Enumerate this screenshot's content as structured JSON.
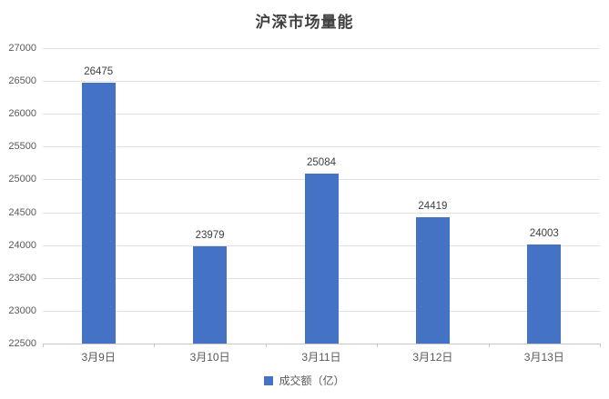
{
  "chart_data": {
    "type": "bar",
    "title": "沪深市场量能",
    "categories": [
      "3月9日",
      "3月10日",
      "3月11日",
      "3月12日",
      "3月13日"
    ],
    "series": [
      {
        "name": "成交额（亿）",
        "values": [
          26475,
          23979,
          25084,
          24419,
          24003
        ]
      }
    ],
    "xlabel": "",
    "ylabel": "",
    "ylim": [
      22500,
      27000
    ],
    "ytick_step": 500,
    "yticks": [
      22500,
      23000,
      23500,
      24000,
      24500,
      25000,
      25500,
      26000,
      26500,
      27000
    ],
    "grid": true,
    "data_labels": true,
    "legend_position": "bottom",
    "colors": {
      "bar": "#4472C4",
      "gridline": "#E2E2E2",
      "axis_line": "#C8C8C8",
      "title_text": "#404040",
      "data_label_text": "#404040",
      "axis_tick_text": "#595959"
    }
  }
}
